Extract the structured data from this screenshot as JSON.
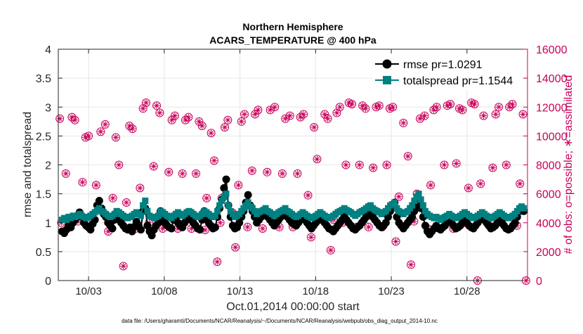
{
  "chart_data": {
    "type": "line",
    "title": [
      "Northern Hemisphere",
      "ACARS_TEMPERATURE @ 400 hPa"
    ],
    "xlabel": "Oct.01,2014 00:00:00 start",
    "ylabel_left": "rmse and totalspread",
    "ylabel_right": "# of obs: o=possible; ∗=assimilated",
    "footer": "data file: /Users/gharamti/Documents/NCAR/Reanalysis/~/Documents/NCAR/Reanalysis/webpub/obs_diag_output_2014-10.nc",
    "x_day_range": [
      1.0,
      32.0
    ],
    "x_ticks": [
      {
        "day": 3,
        "label": "10/03"
      },
      {
        "day": 8,
        "label": "10/08"
      },
      {
        "day": 13,
        "label": "10/13"
      },
      {
        "day": 18,
        "label": "10/18"
      },
      {
        "day": 23,
        "label": "10/23"
      },
      {
        "day": 28,
        "label": "10/28"
      }
    ],
    "ylim_left": [
      0,
      4
    ],
    "yticks_left": [
      "0",
      "0.5",
      "1",
      "1.5",
      "2",
      "2.5",
      "3",
      "3.5",
      "4"
    ],
    "ylim_right": [
      0,
      16000
    ],
    "yticks_right": [
      "0",
      "2000",
      "4000",
      "6000",
      "8000",
      "10000",
      "12000",
      "14000",
      "16000"
    ],
    "legend": [
      "rmse pr=1.0291",
      "totalspread pr=1.1544"
    ],
    "legend_position": "top-right",
    "colors": {
      "rmse": "#000000",
      "totalspread": "#008080",
      "obs": "#c8005a",
      "grid": "#e6e6e6"
    },
    "series": [
      {
        "name": "rmse",
        "axis": "left",
        "values": [
          0.85,
          0.82,
          0.88,
          0.95,
          0.92,
          1.0,
          1.05,
          1.12,
          1.18,
          1.1,
          1.0,
          0.95,
          0.92,
          0.88,
          0.98,
          1.05,
          1.3,
          1.38,
          1.25,
          1.15,
          1.1,
          1.0,
          0.95,
          0.9,
          1.05,
          1.18,
          1.1,
          1.0,
          0.95,
          0.9,
          0.88,
          0.92,
          0.85,
          0.93,
          1.02,
          0.95,
          0.88,
          1.2,
          1.25,
          0.95,
          0.85,
          0.78,
          0.88,
          0.95,
          1.0,
          1.2,
          1.1,
          1.0,
          0.95,
          0.92,
          0.9,
          1.05,
          1.1,
          1.0,
          0.95,
          0.92,
          1.0,
          1.05,
          1.1,
          1.05,
          1.0,
          0.95,
          0.9,
          0.88,
          1.05,
          1.2,
          1.1,
          1.0,
          0.95,
          0.9,
          0.92,
          1.1,
          1.25,
          1.4,
          1.6,
          1.75,
          1.3,
          1.1,
          0.95,
          0.9,
          0.92,
          1.0,
          1.1,
          1.2,
          1.35,
          1.48,
          1.3,
          1.2,
          1.1,
          1.0,
          1.05,
          1.1,
          1.15,
          1.2,
          1.1,
          1.05,
          1.0,
          0.95,
          1.0,
          1.05,
          1.1,
          1.15,
          1.2,
          1.1,
          1.05,
          1.0,
          0.98,
          0.95,
          1.0,
          1.05,
          1.1,
          1.05,
          1.0,
          0.95,
          0.9,
          0.95,
          1.0,
          1.05,
          1.1,
          1.05,
          1.0,
          0.95,
          0.9,
          0.88,
          0.85,
          0.9,
          0.95,
          1.0,
          1.05,
          1.1,
          1.05,
          1.0,
          0.95,
          0.9,
          0.88,
          0.92,
          0.95,
          1.0,
          1.05,
          1.1,
          1.15,
          1.2,
          1.1,
          1.05,
          1.0,
          0.95,
          0.92,
          0.95,
          1.0,
          1.1,
          1.2,
          1.25,
          1.35,
          1.1,
          1.0,
          0.95,
          0.9,
          0.95,
          1.0,
          1.05,
          1.1,
          1.2,
          1.3,
          1.4,
          1.25,
          1.1,
          0.95,
          0.85,
          0.8,
          0.85,
          0.9,
          0.95,
          0.9,
          0.88,
          0.92,
          0.95,
          1.0,
          1.05,
          1.0,
          0.95,
          0.9,
          0.92,
          0.95,
          1.0,
          1.05,
          1.0,
          0.95,
          0.92,
          0.9,
          0.95,
          1.0,
          1.05,
          1.1,
          1.05,
          1.0,
          0.95,
          0.9,
          0.92,
          0.95,
          1.0,
          1.05,
          1.0,
          0.95,
          0.9,
          0.88,
          0.9,
          0.95,
          1.0,
          1.1,
          1.2,
          1.25,
          1.2
        ]
      },
      {
        "name": "totalspread",
        "axis": "left",
        "values": [
          1.05,
          1.08,
          1.05,
          1.1,
          1.08,
          1.12,
          1.1,
          1.12,
          1.15,
          1.12,
          1.1,
          1.08,
          1.1,
          1.12,
          1.15,
          1.18,
          1.22,
          1.25,
          1.2,
          1.18,
          1.15,
          1.12,
          1.1,
          1.12,
          1.15,
          1.2,
          1.18,
          1.15,
          1.12,
          1.1,
          1.08,
          1.1,
          1.12,
          1.15,
          1.18,
          1.15,
          1.12,
          1.3,
          1.38,
          1.2,
          1.12,
          1.1,
          1.08,
          1.1,
          1.12,
          1.2,
          1.18,
          1.15,
          1.12,
          1.1,
          1.08,
          1.12,
          1.15,
          1.18,
          1.15,
          1.12,
          1.15,
          1.18,
          1.2,
          1.18,
          1.15,
          1.12,
          1.1,
          1.12,
          1.15,
          1.2,
          1.18,
          1.15,
          1.12,
          1.1,
          1.12,
          1.2,
          1.3,
          1.38,
          1.45,
          1.5,
          1.3,
          1.2,
          1.15,
          1.1,
          1.12,
          1.15,
          1.2,
          1.25,
          1.3,
          1.35,
          1.28,
          1.25,
          1.2,
          1.15,
          1.18,
          1.2,
          1.22,
          1.25,
          1.2,
          1.18,
          1.15,
          1.12,
          1.15,
          1.18,
          1.2,
          1.22,
          1.25,
          1.2,
          1.18,
          1.15,
          1.12,
          1.1,
          1.12,
          1.15,
          1.18,
          1.15,
          1.12,
          1.1,
          1.08,
          1.1,
          1.12,
          1.15,
          1.18,
          1.15,
          1.12,
          1.1,
          1.08,
          1.1,
          1.12,
          1.15,
          1.18,
          1.2,
          1.22,
          1.25,
          1.22,
          1.2,
          1.18,
          1.15,
          1.12,
          1.15,
          1.18,
          1.2,
          1.22,
          1.25,
          1.28,
          1.3,
          1.25,
          1.22,
          1.2,
          1.18,
          1.15,
          1.18,
          1.2,
          1.25,
          1.3,
          1.32,
          1.35,
          1.25,
          1.2,
          1.18,
          1.15,
          1.18,
          1.2,
          1.25,
          1.3,
          1.38,
          1.45,
          1.5,
          1.4,
          1.3,
          1.2,
          1.15,
          1.12,
          1.1,
          1.08,
          1.1,
          1.08,
          1.05,
          1.08,
          1.1,
          1.12,
          1.15,
          1.12,
          1.1,
          1.08,
          1.1,
          1.12,
          1.15,
          1.18,
          1.15,
          1.12,
          1.1,
          1.08,
          1.1,
          1.12,
          1.15,
          1.18,
          1.15,
          1.12,
          1.1,
          1.08,
          1.1,
          1.12,
          1.15,
          1.18,
          1.15,
          1.12,
          1.1,
          1.08,
          1.1,
          1.12,
          1.15,
          1.2,
          1.25,
          1.28,
          1.25
        ]
      }
    ],
    "obs_possible": [
      [
        1.1,
        11200
      ],
      [
        1.2,
        4000
      ],
      [
        1.5,
        7400
      ],
      [
        1.9,
        11300
      ],
      [
        2.1,
        11100
      ],
      [
        2.3,
        4100
      ],
      [
        2.6,
        6800
      ],
      [
        2.8,
        9900
      ],
      [
        3.0,
        10000
      ],
      [
        3.3,
        4100
      ],
      [
        3.5,
        6600
      ],
      [
        3.8,
        10300
      ],
      [
        4.1,
        10800
      ],
      [
        4.3,
        3400
      ],
      [
        4.6,
        5700
      ],
      [
        4.8,
        9900
      ],
      [
        5.0,
        8000
      ],
      [
        5.3,
        1000
      ],
      [
        5.5,
        5400
      ],
      [
        5.7,
        10700
      ],
      [
        5.9,
        10500
      ],
      [
        6.1,
        3600
      ],
      [
        6.4,
        6400
      ],
      [
        6.6,
        11900
      ],
      [
        6.8,
        12300
      ],
      [
        7.0,
        4000
      ],
      [
        7.3,
        7900
      ],
      [
        7.5,
        12100
      ],
      [
        7.7,
        11600
      ],
      [
        7.9,
        3600
      ],
      [
        8.1,
        3900
      ],
      [
        8.3,
        7500
      ],
      [
        8.5,
        11100
      ],
      [
        8.7,
        11400
      ],
      [
        8.9,
        3600
      ],
      [
        9.2,
        7400
      ],
      [
        9.4,
        11100
      ],
      [
        9.6,
        11300
      ],
      [
        9.8,
        3600
      ],
      [
        10.1,
        7400
      ],
      [
        10.3,
        11000
      ],
      [
        10.5,
        10700
      ],
      [
        10.7,
        3500
      ],
      [
        10.8,
        5700
      ],
      [
        11.1,
        10200
      ],
      [
        11.3,
        8300
      ],
      [
        11.5,
        1300
      ],
      [
        11.7,
        4000
      ],
      [
        11.8,
        5700
      ],
      [
        12.0,
        10600
      ],
      [
        12.2,
        11100
      ],
      [
        12.5,
        4700
      ],
      [
        12.7,
        2300
      ],
      [
        12.9,
        6600
      ],
      [
        13.1,
        11000
      ],
      [
        13.3,
        11500
      ],
      [
        13.5,
        3700
      ],
      [
        13.8,
        7600
      ],
      [
        14.0,
        11500
      ],
      [
        14.2,
        11800
      ],
      [
        14.5,
        3600
      ],
      [
        14.8,
        7500
      ],
      [
        15.0,
        11800
      ],
      [
        15.3,
        12000
      ],
      [
        15.6,
        3700
      ],
      [
        15.8,
        7400
      ],
      [
        16.0,
        11200
      ],
      [
        16.3,
        11400
      ],
      [
        16.5,
        3700
      ],
      [
        16.8,
        7400
      ],
      [
        17.0,
        11300
      ],
      [
        17.2,
        11500
      ],
      [
        17.5,
        5900
      ],
      [
        17.7,
        3000
      ],
      [
        17.9,
        10600
      ],
      [
        18.1,
        8400
      ],
      [
        18.4,
        4200
      ],
      [
        18.6,
        11500
      ],
      [
        18.8,
        11200
      ],
      [
        19.0,
        2100
      ],
      [
        19.2,
        4200
      ],
      [
        19.4,
        11600
      ],
      [
        19.6,
        12000
      ],
      [
        19.8,
        4000
      ],
      [
        20.0,
        8000
      ],
      [
        20.2,
        12300
      ],
      [
        20.4,
        12200
      ],
      [
        20.7,
        3700
      ],
      [
        20.9,
        8000
      ],
      [
        21.1,
        12100
      ],
      [
        21.3,
        11900
      ],
      [
        21.5,
        3700
      ],
      [
        21.8,
        7800
      ],
      [
        22.0,
        12000
      ],
      [
        22.2,
        12100
      ],
      [
        22.4,
        3700
      ],
      [
        22.7,
        8000
      ],
      [
        22.9,
        11900
      ],
      [
        23.1,
        12000
      ],
      [
        23.3,
        2700
      ],
      [
        23.5,
        5800
      ],
      [
        23.8,
        10900
      ],
      [
        24.1,
        8600
      ],
      [
        24.3,
        1100
      ],
      [
        24.5,
        4100
      ],
      [
        24.7,
        6000
      ],
      [
        24.9,
        11200
      ],
      [
        25.2,
        11400
      ],
      [
        25.4,
        3600
      ],
      [
        25.6,
        6600
      ],
      [
        25.8,
        11800
      ],
      [
        26.0,
        12000
      ],
      [
        26.2,
        3600
      ],
      [
        26.5,
        8000
      ],
      [
        26.7,
        12100
      ],
      [
        26.9,
        12200
      ],
      [
        27.1,
        3600
      ],
      [
        27.3,
        8100
      ],
      [
        27.5,
        11900
      ],
      [
        27.7,
        11800
      ],
      [
        27.9,
        4000
      ],
      [
        28.1,
        6400
      ],
      [
        28.3,
        12300
      ],
      [
        28.5,
        12200
      ],
      [
        28.7,
        0
      ],
      [
        28.9,
        6700
      ],
      [
        29.1,
        11400
      ],
      [
        29.4,
        3900
      ],
      [
        29.7,
        7800
      ],
      [
        29.9,
        11500
      ],
      [
        30.1,
        12000
      ],
      [
        30.3,
        4000
      ],
      [
        30.6,
        8000
      ],
      [
        30.8,
        12000
      ],
      [
        31.0,
        12200
      ],
      [
        31.3,
        3800
      ],
      [
        31.5,
        6700
      ],
      [
        31.7,
        11500
      ],
      [
        31.9,
        0
      ]
    ]
  }
}
